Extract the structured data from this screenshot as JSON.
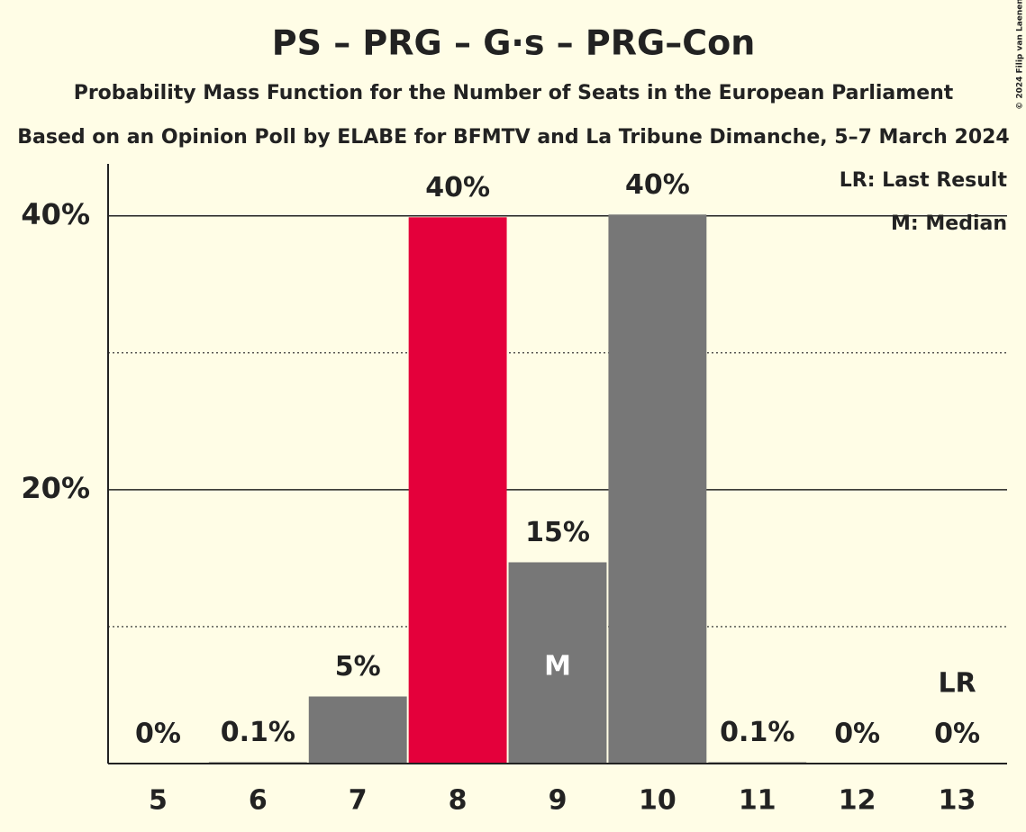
{
  "chart_data": {
    "type": "bar",
    "title": "PS – PRG – G·s – PRG–Con",
    "subtitle": "Probability Mass Function for the Number of Seats in the European Parliament",
    "subtitle2": "Based on an Opinion Poll by ELABE for BFMTV and La Tribune Dimanche, 5–7 March 2024",
    "copyright": "© 2024 Filip van Laenen",
    "categories": [
      "5",
      "6",
      "7",
      "8",
      "9",
      "10",
      "11",
      "12",
      "13"
    ],
    "values": [
      0,
      0.1,
      4.9,
      39.9,
      14.7,
      40.1,
      0.1,
      0,
      0
    ],
    "value_labels": [
      "0%",
      "0.1%",
      "5%",
      "40%",
      "15%",
      "40%",
      "0.1%",
      "0%",
      "0%"
    ],
    "colors": [
      "#777777",
      "#777777",
      "#777777",
      "#e4003b",
      "#777777",
      "#777777",
      "#777777",
      "#777777",
      "#777777"
    ],
    "ylim": [
      0,
      43.8
    ],
    "yticks": [
      {
        "value": 20,
        "label": "20%"
      },
      {
        "value": 40,
        "label": "40%"
      }
    ],
    "minor_yticks": [
      10,
      30
    ],
    "median": "9",
    "median_marker": "M",
    "last_result": "13",
    "last_result_marker": "LR",
    "legend": [
      "LR: Last Result",
      "M: Median"
    ],
    "legend_position": "upper right"
  }
}
